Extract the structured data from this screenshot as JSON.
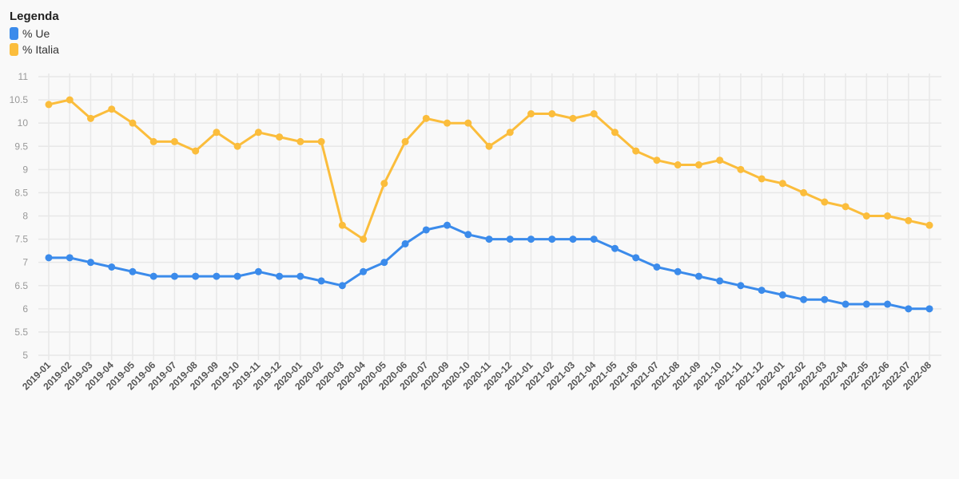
{
  "legend": {
    "title": "Legenda",
    "items": [
      {
        "label": "% Ue",
        "color": "#3b8beb"
      },
      {
        "label": "% Italia",
        "color": "#fbbd3c"
      }
    ]
  },
  "chart_data": {
    "type": "line",
    "title": "",
    "xlabel": "",
    "ylabel": "",
    "ylim": [
      5,
      11
    ],
    "yticks": [
      "5",
      "5.5",
      "6",
      "6.5",
      "7",
      "7.5",
      "8",
      "8.5",
      "9",
      "9.5",
      "10",
      "10.5",
      "11"
    ],
    "grid": true,
    "legend_position": "top-left",
    "categories": [
      "2019-01",
      "2019-02",
      "2019-03",
      "2019-04",
      "2019-05",
      "2019-06",
      "2019-07",
      "2019-08",
      "2019-09",
      "2019-10",
      "2019-11",
      "2019-12",
      "2020-01",
      "2020-02",
      "2020-03",
      "2020-04",
      "2020-05",
      "2020-06",
      "2020-07",
      "2020-09",
      "2020-10",
      "2020-11",
      "2020-12",
      "2021-01",
      "2021-02",
      "2021-03",
      "2021-04",
      "2021-05",
      "2021-06",
      "2021-07",
      "2021-08",
      "2021-09",
      "2021-10",
      "2021-11",
      "2021-12",
      "2022-01",
      "2022-02",
      "2022-03",
      "2022-04",
      "2022-05",
      "2022-06",
      "2022-07",
      "2022-08"
    ],
    "series": [
      {
        "name": "% Ue",
        "color": "#3b8beb",
        "values": [
          7.1,
          7.1,
          7.0,
          6.9,
          6.8,
          6.7,
          6.7,
          6.7,
          6.7,
          6.7,
          6.8,
          6.7,
          6.7,
          6.6,
          6.5,
          6.8,
          7.0,
          7.4,
          7.7,
          7.8,
          7.6,
          7.5,
          7.5,
          7.5,
          7.5,
          7.5,
          7.5,
          7.3,
          7.1,
          6.9,
          6.8,
          6.7,
          6.6,
          6.5,
          6.4,
          6.3,
          6.2,
          6.2,
          6.1,
          6.1,
          6.1,
          6.0,
          6.0
        ]
      },
      {
        "name": "% Italia",
        "color": "#fbbd3c",
        "values": [
          10.4,
          10.5,
          10.1,
          10.3,
          10.0,
          9.6,
          9.6,
          9.4,
          9.8,
          9.5,
          9.8,
          9.7,
          9.6,
          9.6,
          7.8,
          7.5,
          8.7,
          9.6,
          10.1,
          10.0,
          10.0,
          9.5,
          9.8,
          10.2,
          10.2,
          10.1,
          10.2,
          9.8,
          9.4,
          9.2,
          9.1,
          9.1,
          9.2,
          9.0,
          8.8,
          8.7,
          8.5,
          8.3,
          8.2,
          8.0,
          8.0,
          7.9,
          7.8
        ]
      }
    ]
  }
}
